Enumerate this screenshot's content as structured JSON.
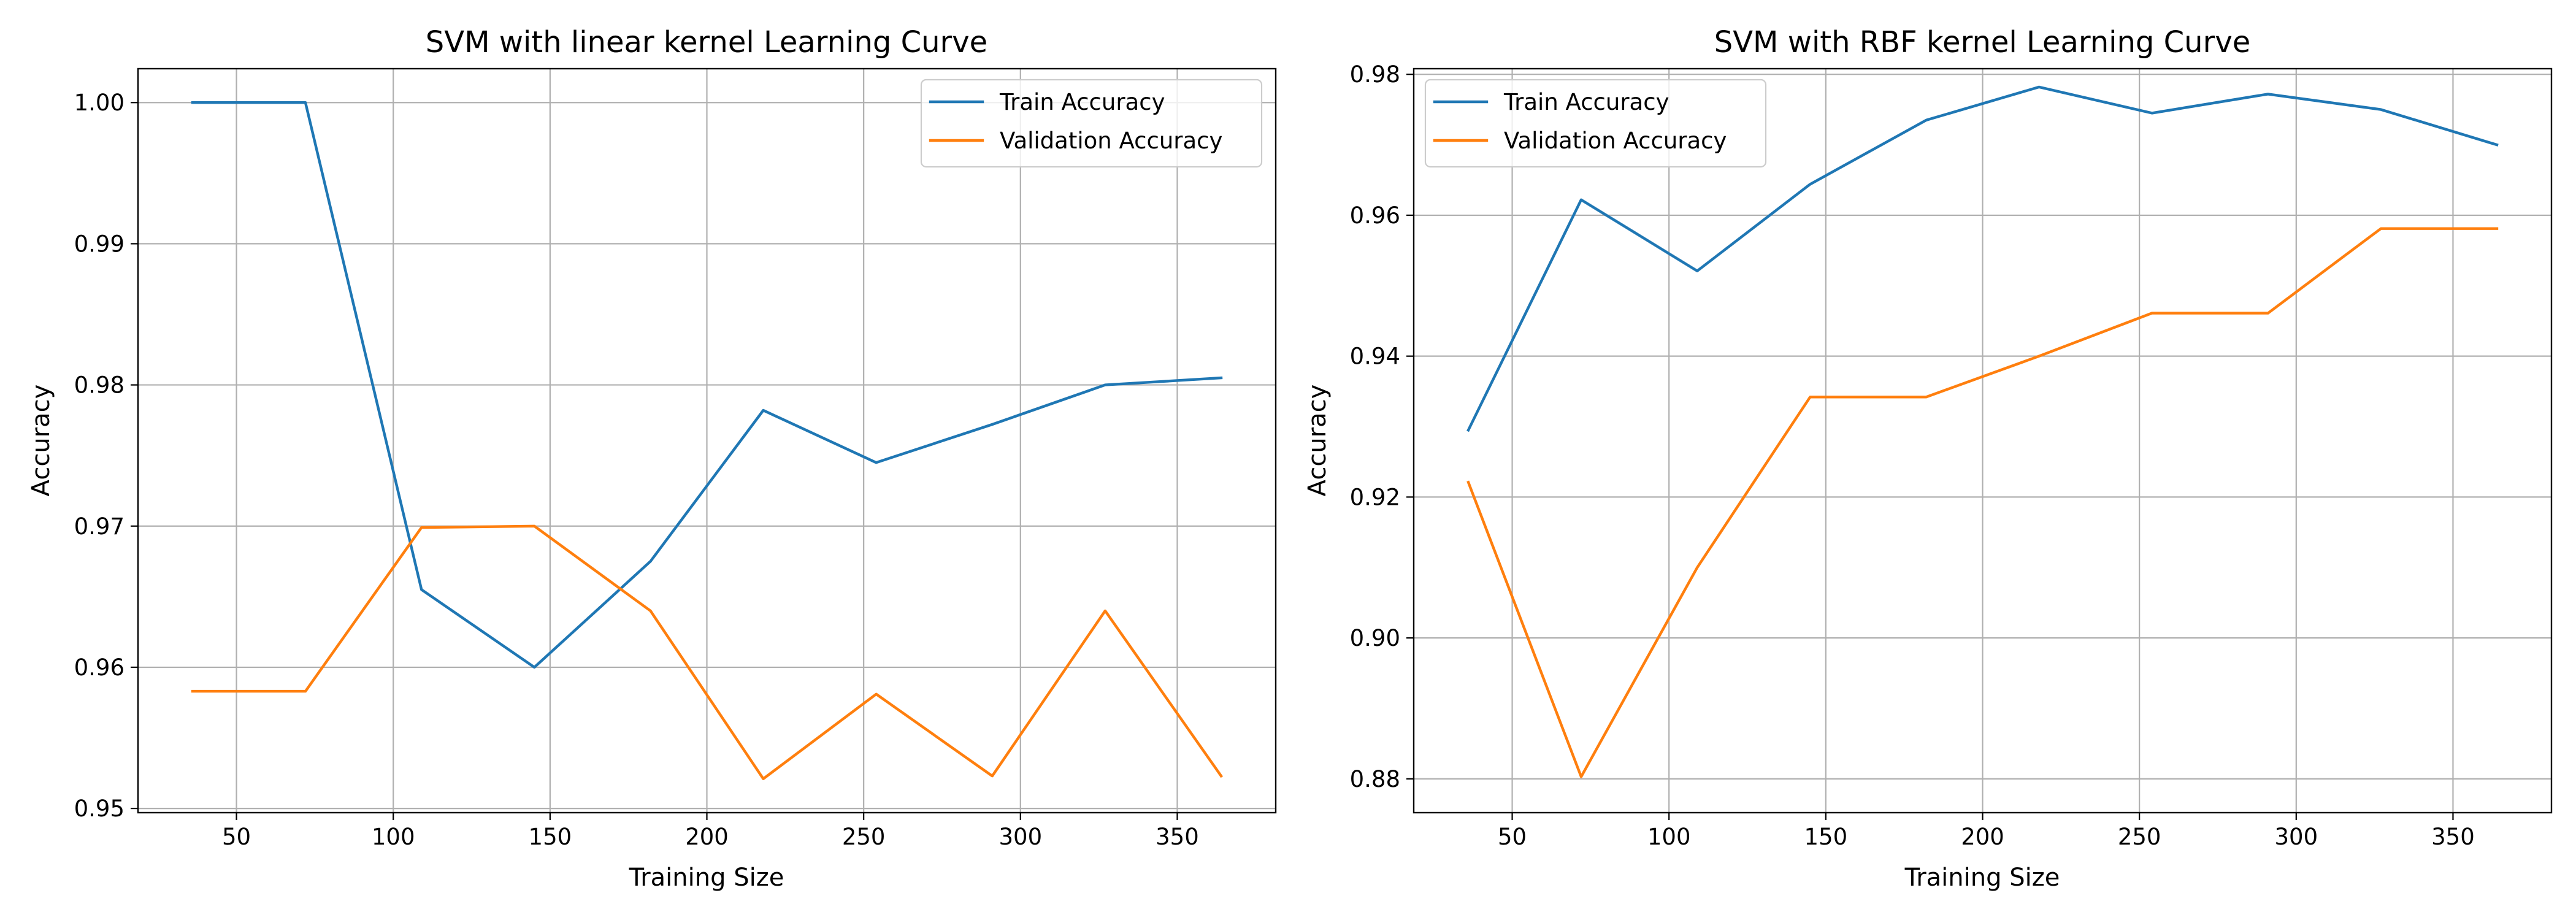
{
  "chart_data": [
    {
      "type": "line",
      "title": "SVM with linear kernel Learning Curve",
      "xlabel": "Training Size",
      "ylabel": "Accuracy",
      "xlim": [
        18.6,
        381.4
      ],
      "ylim": [
        0.9497,
        1.0024
      ],
      "xticks": [
        50,
        100,
        150,
        200,
        250,
        300,
        350
      ],
      "xtick_labels": [
        "50",
        "100",
        "150",
        "200",
        "250",
        "300",
        "350"
      ],
      "yticks": [
        0.95,
        0.96,
        0.97,
        0.98,
        0.99,
        1.0
      ],
      "ytick_labels": [
        "0.95",
        "0.96",
        "0.97",
        "0.98",
        "0.99",
        "1.00"
      ],
      "grid": true,
      "legend_position": "top-right",
      "x": [
        36,
        72,
        109,
        145,
        182,
        218,
        254,
        291,
        327,
        364
      ],
      "series": [
        {
          "name": "Train Accuracy",
          "color": "#1f77b4",
          "values": [
            1.0,
            1.0,
            0.9655,
            0.96,
            0.9675,
            0.9782,
            0.9745,
            0.9772,
            0.98,
            0.9805
          ]
        },
        {
          "name": "Validation Accuracy",
          "color": "#ff7f0e",
          "values": [
            0.9583,
            0.9583,
            0.9699,
            0.97,
            0.964,
            0.9521,
            0.9581,
            0.9523,
            0.964,
            0.9523
          ]
        }
      ]
    },
    {
      "type": "line",
      "title": "SVM with RBF kernel Learning Curve",
      "xlabel": "Training Size",
      "ylabel": "Accuracy",
      "xlim": [
        18.6,
        381.4
      ],
      "ylim": [
        0.8752,
        0.9808
      ],
      "xticks": [
        50,
        100,
        150,
        200,
        250,
        300,
        350
      ],
      "xtick_labels": [
        "50",
        "100",
        "150",
        "200",
        "250",
        "300",
        "350"
      ],
      "yticks": [
        0.88,
        0.9,
        0.92,
        0.94,
        0.96,
        0.98
      ],
      "ytick_labels": [
        "0.88",
        "0.90",
        "0.92",
        "0.94",
        "0.96",
        "0.98"
      ],
      "grid": true,
      "legend_position": "top-left",
      "x": [
        36,
        72,
        109,
        145,
        182,
        218,
        254,
        291,
        327,
        364
      ],
      "series": [
        {
          "name": "Train Accuracy",
          "color": "#1f77b4",
          "values": [
            0.9295,
            0.9622,
            0.9521,
            0.9644,
            0.9735,
            0.9782,
            0.9745,
            0.9772,
            0.975,
            0.97
          ]
        },
        {
          "name": "Validation Accuracy",
          "color": "#ff7f0e",
          "values": [
            0.9221,
            0.8803,
            0.91,
            0.9342,
            0.9342,
            0.94,
            0.9461,
            0.9461,
            0.9581,
            0.9581
          ]
        }
      ]
    }
  ]
}
